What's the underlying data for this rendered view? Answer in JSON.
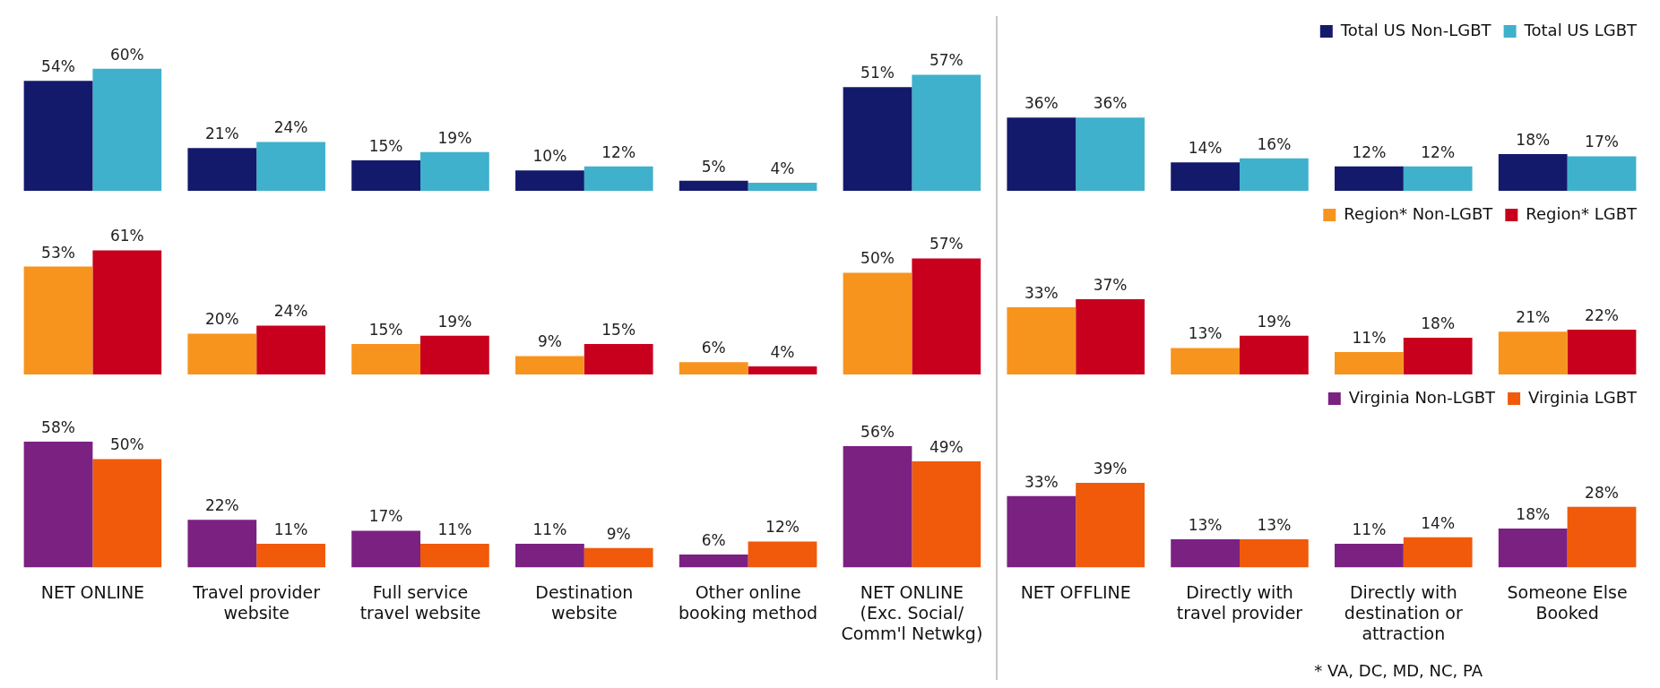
{
  "chart_data": [
    {
      "type": "bar",
      "categories": [
        null,
        null,
        null,
        null,
        null,
        null,
        null,
        null,
        null,
        null
      ],
      "series": [
        {
          "name": "Total US Non-LGBT",
          "color": "#141a6b",
          "values": [
            54,
            21,
            15,
            10,
            5,
            51,
            36,
            14,
            12,
            18
          ],
          "value_labels": [
            "54%",
            "21%",
            "15%",
            "10%",
            "5%",
            "51%",
            "36%",
            "14%",
            "12%",
            "18%"
          ]
        },
        {
          "name": "Total US LGBT",
          "color": "#3fb1cc",
          "values": [
            60,
            24,
            19,
            12,
            4,
            57,
            36,
            16,
            12,
            17
          ],
          "value_labels": [
            "60%",
            "24%",
            "19%",
            "12%",
            "4%",
            "57%",
            "36%",
            "16%",
            "12%",
            "17%"
          ]
        }
      ],
      "legend": "top right",
      "grid": false,
      "tick_labels": false
    },
    {
      "type": "bar",
      "categories": [
        null,
        null,
        null,
        null,
        null,
        null,
        null,
        null,
        null,
        null
      ],
      "series": [
        {
          "name": "Region* Non-LGBT",
          "color": "#f7941d",
          "values": [
            53,
            20,
            15,
            9,
            6,
            50,
            33,
            13,
            11,
            21
          ],
          "value_labels": [
            "53%",
            "20%",
            "15%",
            "9%",
            "6%",
            "50%",
            "33%",
            "13%",
            "11%",
            "21%"
          ]
        },
        {
          "name": "Region* LGBT",
          "color": "#c8001e",
          "values": [
            61,
            24,
            19,
            15,
            4,
            57,
            37,
            19,
            18,
            22
          ],
          "value_labels": [
            "61%",
            "24%",
            "19%",
            "15%",
            "4%",
            "57%",
            "37%",
            "19%",
            "18%",
            "22%"
          ]
        }
      ],
      "legend": "top right",
      "grid": false,
      "tick_labels": false
    },
    {
      "type": "bar",
      "categories": [
        "NET ONLINE",
        "Travel provider website",
        "Full service travel website",
        "Destination website",
        "Other online booking method",
        "NET ONLINE (Exc. Social/ Comm'l Netwkg)",
        "NET OFFLINE",
        "Directly with travel provider",
        "Directly with destination or attraction",
        "Someone Else Booked"
      ],
      "series": [
        {
          "name": "Virginia Non-LGBT",
          "color": "#7b2182",
          "values": [
            58,
            22,
            17,
            11,
            6,
            56,
            33,
            13,
            11,
            18
          ],
          "value_labels": [
            "58%",
            "22%",
            "17%",
            "11%",
            "6%",
            "56%",
            "33%",
            "13%",
            "11%",
            "18%"
          ]
        },
        {
          "name": "Virginia LGBT",
          "color": "#f05a0a",
          "values": [
            50,
            11,
            11,
            9,
            12,
            49,
            39,
            13,
            14,
            28
          ],
          "value_labels": [
            "50%",
            "11%",
            "11%",
            "9%",
            "12%",
            "49%",
            "39%",
            "13%",
            "14%",
            "28%"
          ]
        }
      ],
      "legend": "top right",
      "grid": false,
      "tick_labels": "x",
      "annotations": [
        "* VA, DC, MD, NC, PA"
      ]
    }
  ]
}
